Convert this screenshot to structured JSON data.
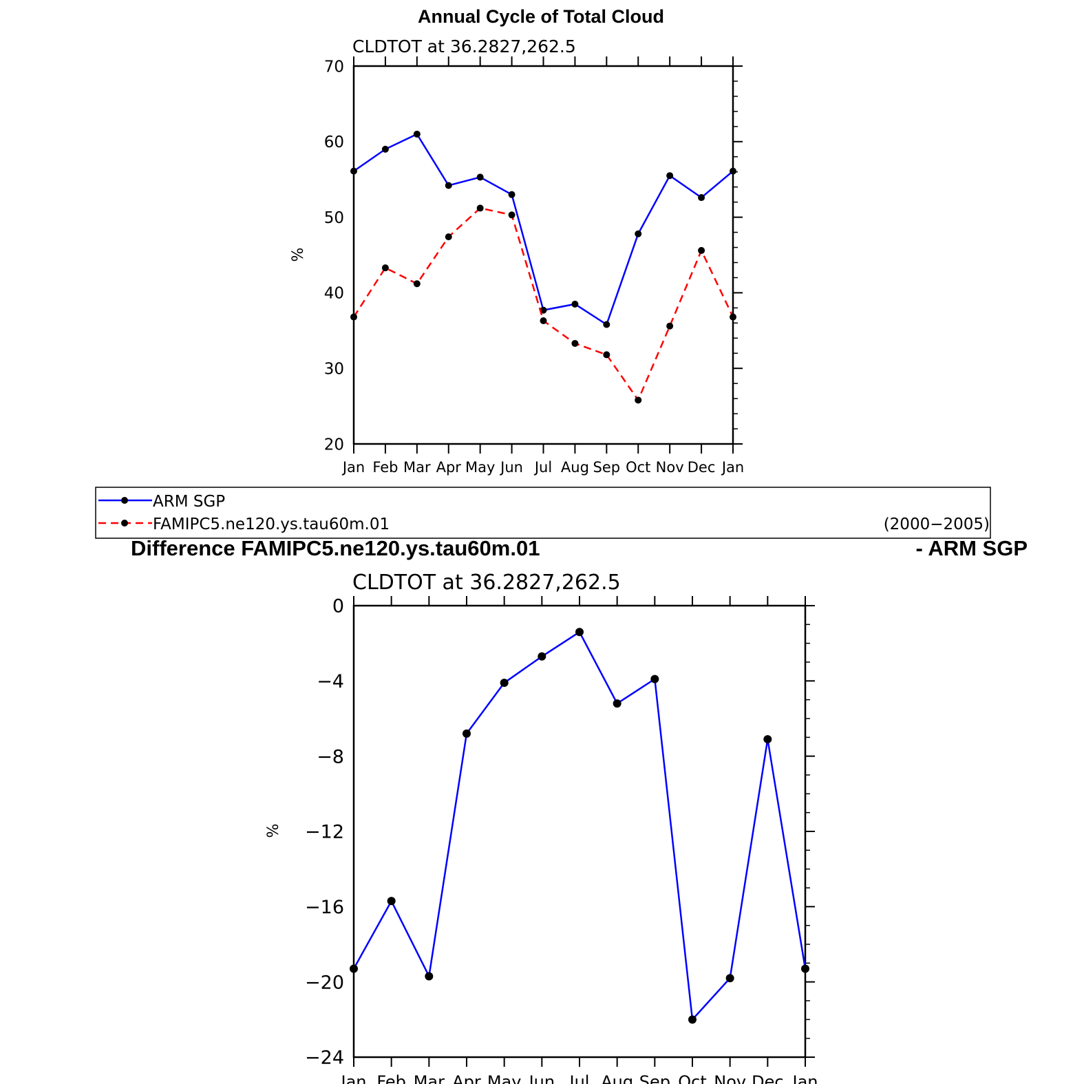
{
  "page": {
    "title": "Annual Cycle of Total Cloud",
    "legend": {
      "items": [
        {
          "label": "ARM SGP",
          "color": "#0000ff",
          "dash": false
        },
        {
          "label": "FAMIPC5.ne120.ys.tau60m.01",
          "color": "#ff0000",
          "dash": true
        }
      ],
      "period": "(2000−2005)"
    },
    "diff_title_left": "Difference FAMIPC5.ne120.ys.tau60m.01",
    "diff_title_right": "- ARM SGP"
  },
  "chart_data": [
    {
      "type": "line",
      "subtitle": "CLDTOT at 36.2827,262.5",
      "ylabel": "%",
      "xlabel": "",
      "categories": [
        "Jan",
        "Feb",
        "Mar",
        "Apr",
        "May",
        "Jun",
        "Jul",
        "Aug",
        "Sep",
        "Oct",
        "Nov",
        "Dec",
        "Jan"
      ],
      "ylim": [
        20,
        70
      ],
      "yticks": [
        20,
        30,
        40,
        50,
        60,
        70
      ],
      "series": [
        {
          "name": "ARM SGP",
          "color": "#0000ff",
          "dash": false,
          "values": [
            56.1,
            59.0,
            61.0,
            54.2,
            55.3,
            53.0,
            37.7,
            38.5,
            35.8,
            47.8,
            55.5,
            52.6,
            56.1
          ]
        },
        {
          "name": "FAMIPC5.ne120.ys.tau60m.01",
          "color": "#ff0000",
          "dash": true,
          "values": [
            36.8,
            43.3,
            41.2,
            47.4,
            51.2,
            50.3,
            36.3,
            33.3,
            31.8,
            25.8,
            35.6,
            45.6,
            36.8
          ]
        }
      ]
    },
    {
      "type": "line",
      "subtitle": "CLDTOT at 36.2827,262.5",
      "ylabel": "%",
      "xlabel": "",
      "categories": [
        "Jan",
        "Feb",
        "Mar",
        "Apr",
        "May",
        "Jun",
        "Jul",
        "Aug",
        "Sep",
        "Oct",
        "Nov",
        "Dec",
        "Jan"
      ],
      "ylim": [
        -24,
        0
      ],
      "yticks": [
        -24,
        -20,
        -16,
        -12,
        -8,
        -4,
        0
      ],
      "series": [
        {
          "color": "#0000ff",
          "dash": false,
          "values": [
            -19.3,
            -15.7,
            -19.7,
            -6.8,
            -4.1,
            -2.7,
            -1.4,
            -5.2,
            -3.9,
            -22.0,
            -19.8,
            -7.1,
            -19.3
          ]
        }
      ]
    }
  ]
}
